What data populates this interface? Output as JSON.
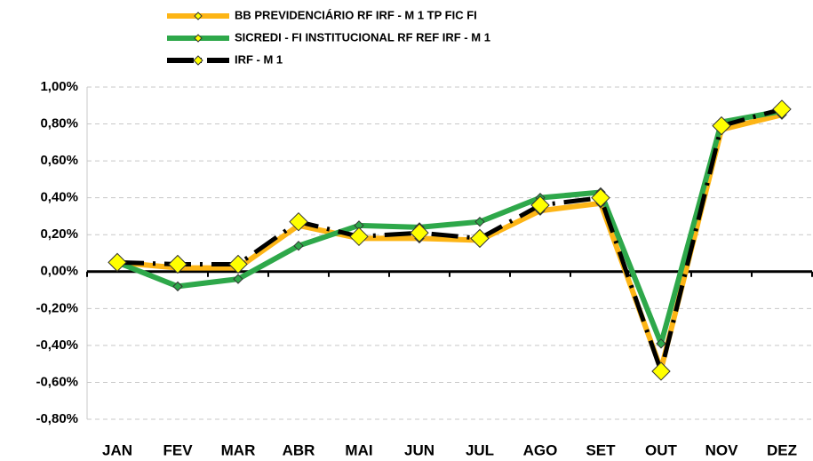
{
  "chart_data": {
    "type": "line",
    "categories": [
      "JAN",
      "FEV",
      "MAR",
      "ABR",
      "MAI",
      "JUN",
      "JUL",
      "AGO",
      "SET",
      "OUT",
      "NOV",
      "DEZ"
    ],
    "series": [
      {
        "name": "BB PREVIDENCIÁRIO RF IRF - M 1 TP FIC FI",
        "color": "#FDB515",
        "marker_color": "#2EA84A",
        "line_style": "solid",
        "values": [
          0.05,
          0.02,
          0.02,
          0.25,
          0.18,
          0.18,
          0.17,
          0.33,
          0.37,
          -0.53,
          0.77,
          0.85
        ]
      },
      {
        "name": "SICREDI - FI INSTITUCIONAL RF REF IRF - M 1",
        "color": "#2EA84A",
        "marker_color": "#2EA84A",
        "line_style": "solid",
        "values": [
          0.05,
          -0.08,
          -0.04,
          0.14,
          0.25,
          0.24,
          0.27,
          0.4,
          0.43,
          -0.39,
          0.81,
          0.87
        ]
      },
      {
        "name": "IRF - M 1",
        "color": "#000000",
        "marker_color": "#FFFF00",
        "line_style": "dashdot",
        "values": [
          0.05,
          0.04,
          0.04,
          0.27,
          0.19,
          0.21,
          0.18,
          0.36,
          0.4,
          -0.54,
          0.79,
          0.88
        ]
      }
    ],
    "ylim": [
      -0.8,
      1.0
    ],
    "yticks": [
      {
        "value": -0.8,
        "label": "-0,80%"
      },
      {
        "value": -0.6,
        "label": "-0,60%"
      },
      {
        "value": -0.4,
        "label": "-0,40%"
      },
      {
        "value": -0.2,
        "label": "-0,20%"
      },
      {
        "value": 0,
        "label": "0,00%"
      },
      {
        "value": 0.2,
        "label": "0,20%"
      },
      {
        "value": 0.4,
        "label": "0,40%"
      },
      {
        "value": 0.6,
        "label": "0,60%"
      },
      {
        "value": 0.8,
        "label": "0,80%"
      },
      {
        "value": 1.0,
        "label": "1,00%"
      }
    ],
    "grid": true
  }
}
